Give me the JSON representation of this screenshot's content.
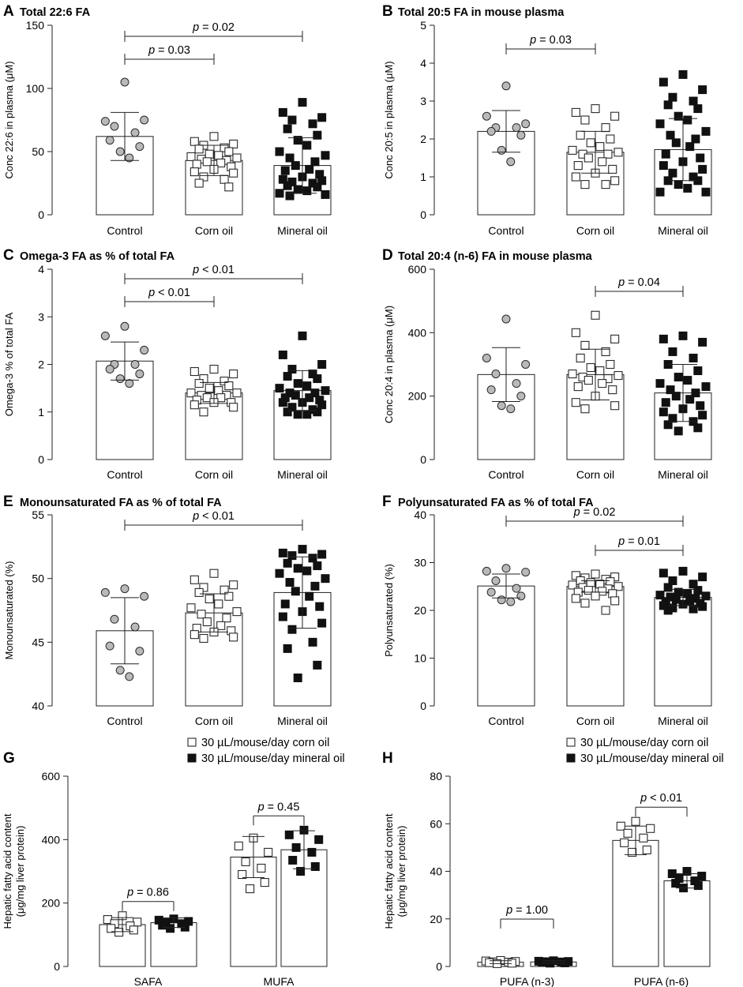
{
  "figure": {
    "labels": [
      "A",
      "B",
      "C",
      "D",
      "E",
      "F",
      "G",
      "H"
    ]
  },
  "legend": {
    "corn": "30 µL/mouse/day corn oil",
    "mineral": "30 µL/mouse/day mineral oil"
  },
  "chart_data": [
    {
      "id": "A",
      "type": "bar",
      "title": "Total 22:6 FA",
      "ylabel": "Conc 22:6 in plasma (μM)",
      "ylim": [
        0,
        150
      ],
      "yticks": [
        0,
        50,
        100,
        150
      ],
      "categories": [
        "Control",
        "Corn oil",
        "Mineral oil"
      ],
      "bars": [
        {
          "mean": 62,
          "sd": 19,
          "marker": "gray-circle",
          "points": [
            105,
            74,
            75,
            70,
            65,
            59,
            54,
            50,
            45
          ]
        },
        {
          "mean": 43,
          "sd": 12,
          "marker": "open-square",
          "points": [
            62,
            58,
            56,
            55,
            53,
            52,
            50,
            48,
            47,
            46,
            45,
            44,
            43,
            42,
            41,
            40,
            38,
            36,
            34,
            33,
            30,
            28,
            25,
            22
          ]
        },
        {
          "mean": 39,
          "sd": 22,
          "marker": "black-square",
          "points": [
            89,
            81,
            77,
            75,
            72,
            68,
            63,
            59,
            55,
            50,
            47,
            45,
            42,
            39,
            36,
            35,
            32,
            30,
            28,
            27,
            26,
            25,
            23,
            22,
            20,
            19,
            17,
            16,
            15
          ]
        }
      ],
      "annotations": [
        {
          "text": "p = 0.03",
          "from": 0,
          "to": 1
        },
        {
          "text": "p = 0.02",
          "from": 0,
          "to": 2
        }
      ]
    },
    {
      "id": "B",
      "type": "bar",
      "title": "Total 20:5 FA in mouse plasma",
      "ylabel": "Conc 20:5 in plasma (μM)",
      "ylim": [
        0,
        5
      ],
      "yticks": [
        0,
        1,
        2,
        3,
        4,
        5
      ],
      "categories": [
        "Control",
        "Corn oil",
        "Mineral oil"
      ],
      "bars": [
        {
          "mean": 2.2,
          "sd": 0.55,
          "marker": "gray-circle",
          "points": [
            3.4,
            2.6,
            2.4,
            2.3,
            2.3,
            2.2,
            2.1,
            1.7,
            1.4
          ]
        },
        {
          "mean": 1.65,
          "sd": 0.55,
          "marker": "open-square",
          "points": [
            2.8,
            2.7,
            2.6,
            2.5,
            2.3,
            2.1,
            2.0,
            1.9,
            1.8,
            1.7,
            1.65,
            1.6,
            1.6,
            1.5,
            1.4,
            1.3,
            1.2,
            1.1,
            1.0,
            0.9,
            0.8,
            0.8
          ]
        },
        {
          "mean": 1.72,
          "sd": 0.82,
          "marker": "black-square",
          "points": [
            3.7,
            3.5,
            3.3,
            3.1,
            3.0,
            2.9,
            2.8,
            2.6,
            2.5,
            2.4,
            2.2,
            2.1,
            2.0,
            1.9,
            1.8,
            1.6,
            1.5,
            1.4,
            1.3,
            1.2,
            1.1,
            1.0,
            0.9,
            0.9,
            0.8,
            0.7,
            0.6,
            0.6
          ]
        }
      ],
      "annotations": [
        {
          "text": "p = 0.03",
          "from": 0,
          "to": 1
        }
      ]
    },
    {
      "id": "C",
      "type": "bar",
      "title": "Omega-3 FA as % of total FA",
      "ylabel": "Omega-3 % of total FA",
      "ylim": [
        0,
        4
      ],
      "yticks": [
        0,
        1,
        2,
        3,
        4
      ],
      "categories": [
        "Control",
        "Corn oil",
        "Mineral oil"
      ],
      "bars": [
        {
          "mean": 2.07,
          "sd": 0.4,
          "marker": "gray-circle",
          "points": [
            2.8,
            2.6,
            2.3,
            2.0,
            2.0,
            1.9,
            1.8,
            1.7,
            1.6
          ]
        },
        {
          "mean": 1.4,
          "sd": 0.22,
          "marker": "open-square",
          "points": [
            1.9,
            1.85,
            1.8,
            1.7,
            1.65,
            1.6,
            1.55,
            1.5,
            1.45,
            1.4,
            1.4,
            1.35,
            1.35,
            1.3,
            1.3,
            1.25,
            1.2,
            1.2,
            1.15,
            1.1,
            1.0
          ]
        },
        {
          "mean": 1.45,
          "sd": 0.42,
          "marker": "black-square",
          "points": [
            2.6,
            2.2,
            2.0,
            1.9,
            1.8,
            1.75,
            1.7,
            1.6,
            1.55,
            1.5,
            1.45,
            1.4,
            1.4,
            1.35,
            1.3,
            1.3,
            1.25,
            1.2,
            1.2,
            1.15,
            1.1,
            1.05,
            1.0,
            1.0,
            0.95,
            0.95
          ]
        }
      ],
      "annotations": [
        {
          "text": "p < 0.01",
          "from": 0,
          "to": 1
        },
        {
          "text": "p < 0.01",
          "from": 0,
          "to": 2
        }
      ]
    },
    {
      "id": "D",
      "type": "bar",
      "title": "Total 20:4 (n-6) FA in mouse plasma",
      "ylabel": "Conc 20:4 in plasma (μM)",
      "ylim": [
        0,
        600
      ],
      "yticks": [
        0,
        200,
        400,
        600
      ],
      "categories": [
        "Control",
        "Corn oil",
        "Mineral oil"
      ],
      "bars": [
        {
          "mean": 268,
          "sd": 85,
          "marker": "gray-circle",
          "points": [
            443,
            320,
            300,
            270,
            240,
            220,
            200,
            170,
            160
          ]
        },
        {
          "mean": 268,
          "sd": 80,
          "marker": "open-square",
          "points": [
            455,
            400,
            380,
            360,
            340,
            320,
            300,
            290,
            280,
            270,
            265,
            260,
            255,
            250,
            240,
            230,
            220,
            200,
            180,
            170,
            160
          ]
        },
        {
          "mean": 210,
          "sd": 90,
          "marker": "black-square",
          "points": [
            390,
            380,
            370,
            340,
            320,
            300,
            280,
            260,
            250,
            240,
            230,
            220,
            210,
            200,
            190,
            180,
            170,
            160,
            150,
            140,
            130,
            120,
            110,
            100,
            90
          ]
        }
      ],
      "annotations": [
        {
          "text": "p = 0.04",
          "from": 1,
          "to": 2
        }
      ]
    },
    {
      "id": "E",
      "type": "bar",
      "title": "Monounsaturated FA as % of total FA",
      "ylabel": "Monounsaturated (%)",
      "ylim": [
        40,
        55
      ],
      "yticks": [
        40,
        45,
        50,
        55
      ],
      "categories": [
        "Control",
        "Corn oil",
        "Mineral oil"
      ],
      "bars": [
        {
          "mean": 45.9,
          "sd": 2.6,
          "marker": "gray-circle",
          "points": [
            49.2,
            48.9,
            48.6,
            46.8,
            46.2,
            44.7,
            44.3,
            42.8,
            42.3
          ]
        },
        {
          "mean": 47.3,
          "sd": 1.5,
          "marker": "open-square",
          "points": [
            50.4,
            49.9,
            49.5,
            49.3,
            49.1,
            48.9,
            48.6,
            48.4,
            48.0,
            47.7,
            47.4,
            47.2,
            46.9,
            46.6,
            46.3,
            46.1,
            45.9,
            45.8,
            45.6,
            45.4,
            45.3
          ]
        },
        {
          "mean": 48.9,
          "sd": 2.8,
          "marker": "black-square",
          "points": [
            52.3,
            52.0,
            51.9,
            51.8,
            51.6,
            51.2,
            51.0,
            50.8,
            50.6,
            50.4,
            50.0,
            49.7,
            49.4,
            49.0,
            48.6,
            48.0,
            47.8,
            47.4,
            47.0,
            46.5,
            46.0,
            45.0,
            44.5,
            43.2,
            42.2
          ]
        }
      ],
      "annotations": [
        {
          "text": "p < 0.01",
          "from": 0,
          "to": 2
        }
      ]
    },
    {
      "id": "F",
      "type": "bar",
      "title": "Polyunsaturated FA as % of total FA",
      "ylabel": "Polyunsaturated (%)",
      "ylim": [
        0,
        40
      ],
      "yticks": [
        0,
        10,
        20,
        30,
        40
      ],
      "categories": [
        "Control",
        "Corn oil",
        "Mineral oil"
      ],
      "bars": [
        {
          "mean": 25.1,
          "sd": 2.5,
          "marker": "gray-circle",
          "points": [
            28.8,
            28.2,
            28.0,
            26.2,
            24.6,
            23.8,
            23.0,
            22.2,
            21.8
          ]
        },
        {
          "mean": 25.0,
          "sd": 1.2,
          "marker": "open-square",
          "points": [
            27.6,
            27.3,
            27.0,
            26.8,
            26.5,
            26.2,
            26.0,
            25.8,
            25.5,
            25.3,
            25.0,
            24.8,
            24.5,
            24.2,
            24.0,
            23.8,
            23.5,
            23.0,
            22.5,
            22.0,
            21.5,
            20.0
          ]
        },
        {
          "mean": 22.7,
          "sd": 1.7,
          "marker": "black-square",
          "points": [
            28.2,
            27.8,
            27.0,
            26.2,
            25.5,
            24.8,
            24.2,
            23.8,
            23.5,
            23.2,
            23.0,
            22.8,
            22.5,
            22.3,
            22.0,
            21.8,
            21.5,
            21.3,
            21.0,
            20.8,
            20.5,
            20.3,
            20.0
          ]
        }
      ],
      "annotations": [
        {
          "text": "p = 0.02",
          "from": 0,
          "to": 2
        },
        {
          "text": "p = 0.01",
          "from": 1,
          "to": 2
        }
      ]
    },
    {
      "id": "G",
      "type": "bar",
      "ylabel": "Hepatic fatty acid content (μg/mg liver protein)",
      "ylabel_lines": [
        "Hepatic fatty acid content",
        "(μg/mg liver protein)"
      ],
      "ylim": [
        0,
        600
      ],
      "yticks": [
        0,
        200,
        400,
        600
      ],
      "categories": [
        "SAFA",
        "MUFA"
      ],
      "series": [
        {
          "name": "30 µL/mouse/day corn oil",
          "marker": "open-square",
          "values": [
            132,
            345
          ],
          "sd": [
            22,
            65
          ],
          "points": [
            [
              160,
              148,
              140,
              135,
              128,
              120,
              115,
              108
            ],
            [
              405,
              380,
              360,
              330,
              310,
              290,
              265,
              245
            ]
          ]
        },
        {
          "name": "30 µL/mouse/day mineral oil",
          "marker": "black-square",
          "values": [
            138,
            368
          ],
          "sd": [
            15,
            60
          ],
          "points": [
            [
              150,
              146,
              142,
              138,
              135,
              130,
              124,
              120
            ],
            [
              430,
              415,
              400,
              375,
              360,
              335,
              315,
              300
            ]
          ]
        }
      ],
      "annotations": [
        {
          "text": "p = 0.86",
          "group": 0
        },
        {
          "text": "p = 0.45",
          "group": 1
        }
      ]
    },
    {
      "id": "H",
      "type": "bar",
      "ylabel": "Hepatic fatty acid content (μg/mg liver protein)",
      "ylabel_lines": [
        "Hepatic fatty acid content",
        "(μg/mg liver protein)"
      ],
      "ylim": [
        0,
        80
      ],
      "yticks": [
        0,
        20,
        40,
        60,
        80
      ],
      "categories": [
        "PUFA (n-3)",
        "PUFA (n-6)"
      ],
      "series": [
        {
          "name": "30 µL/mouse/day corn oil",
          "marker": "open-square",
          "values": [
            1.8,
            53
          ],
          "sd": [
            0.6,
            6
          ],
          "points": [
            [
              2.5,
              2.3,
              2.1,
              1.9,
              1.8,
              1.6,
              1.4,
              1.2
            ],
            [
              61,
              59,
              58,
              56,
              54,
              52,
              49,
              48
            ]
          ]
        },
        {
          "name": "30 µL/mouse/day mineral oil",
          "marker": "black-square",
          "values": [
            1.9,
            36
          ],
          "sd": [
            0.5,
            3
          ],
          "points": [
            [
              2.4,
              2.2,
              2.1,
              2.0,
              1.9,
              1.7,
              1.5,
              1.4
            ],
            [
              40,
              39,
              38,
              37,
              36,
              35,
              34,
              33
            ]
          ]
        }
      ],
      "annotations": [
        {
          "text": "p = 1.00",
          "group": 0
        },
        {
          "text": "p < 0.01",
          "group": 1
        }
      ]
    }
  ]
}
